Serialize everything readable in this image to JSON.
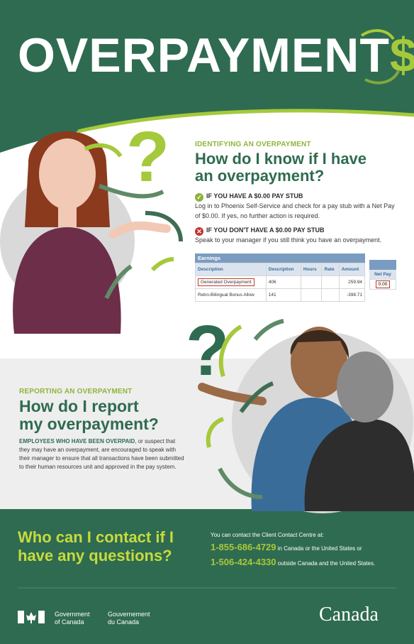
{
  "title": {
    "main": "OVERPAYMENT",
    "accent": "$"
  },
  "colors": {
    "dark_green": "#2f6b50",
    "lime": "#a5c93b",
    "grey_band": "#eeeeee"
  },
  "identify": {
    "kicker": "IDENTIFYING AN OVERPAYMENT",
    "heading_line1": "How do I know if I have",
    "heading_line2": "an overpayment?",
    "yes_icon": "check-circle-icon",
    "yes_title": "IF YOU HAVE A $0.00 PAY STUB",
    "yes_line1": "Log in to Phoenix Self-Service and check for a pay stub with a Net Pay",
    "yes_line2": "of $0.00. If yes, no further action is required.",
    "no_icon": "x-circle-icon",
    "no_title": "IF YOU DON'T HAVE A $0.00 PAY STUB",
    "no_line": "Speak to your manager if you still think you have an overpayment."
  },
  "earnings": {
    "caption": "Earnings",
    "headers": [
      "Description",
      "Description",
      "Hours",
      "Rate",
      "Amount"
    ],
    "rows": [
      [
        "Generated Overpayment",
        "406",
        "",
        "",
        "259.94"
      ],
      [
        "Retro-Bilingual Bonus Allow",
        "141",
        "",
        "",
        "-398.71"
      ]
    ],
    "net_pay_label": "Net Pay",
    "net_pay_value": "0.00"
  },
  "report": {
    "kicker": "REPORTING AN OVERPAYMENT",
    "heading_line1": "How do I report",
    "heading_line2": "my overpayment?",
    "lead": "EMPLOYEES WHO HAVE BEEN OVERPAID",
    "line1": ", or suspect that",
    "line2": "they may have an overpayment, are encouraged to speak with",
    "line3": "their manager to ensure that all transactions have been submitted",
    "line4": "to their human resources unit and approved in the pay system."
  },
  "contact": {
    "heading_line1": "Who can I contact if I",
    "heading_line2": "have any questions?",
    "intro": "You can contact the Client Contact Centre at:",
    "phone1": "1-855-686-4729",
    "phone1_note": "in Canada or the United States or",
    "phone2": "1-506-424-4330",
    "phone2_note": "outside Canada and the United States."
  },
  "footer": {
    "gov_en_1": "Government",
    "gov_en_2": "of Canada",
    "gov_fr_1": "Gouvernement",
    "gov_fr_2": "du Canada",
    "wordmark": "Canada"
  },
  "illustrations": {
    "question_mark": "?"
  }
}
